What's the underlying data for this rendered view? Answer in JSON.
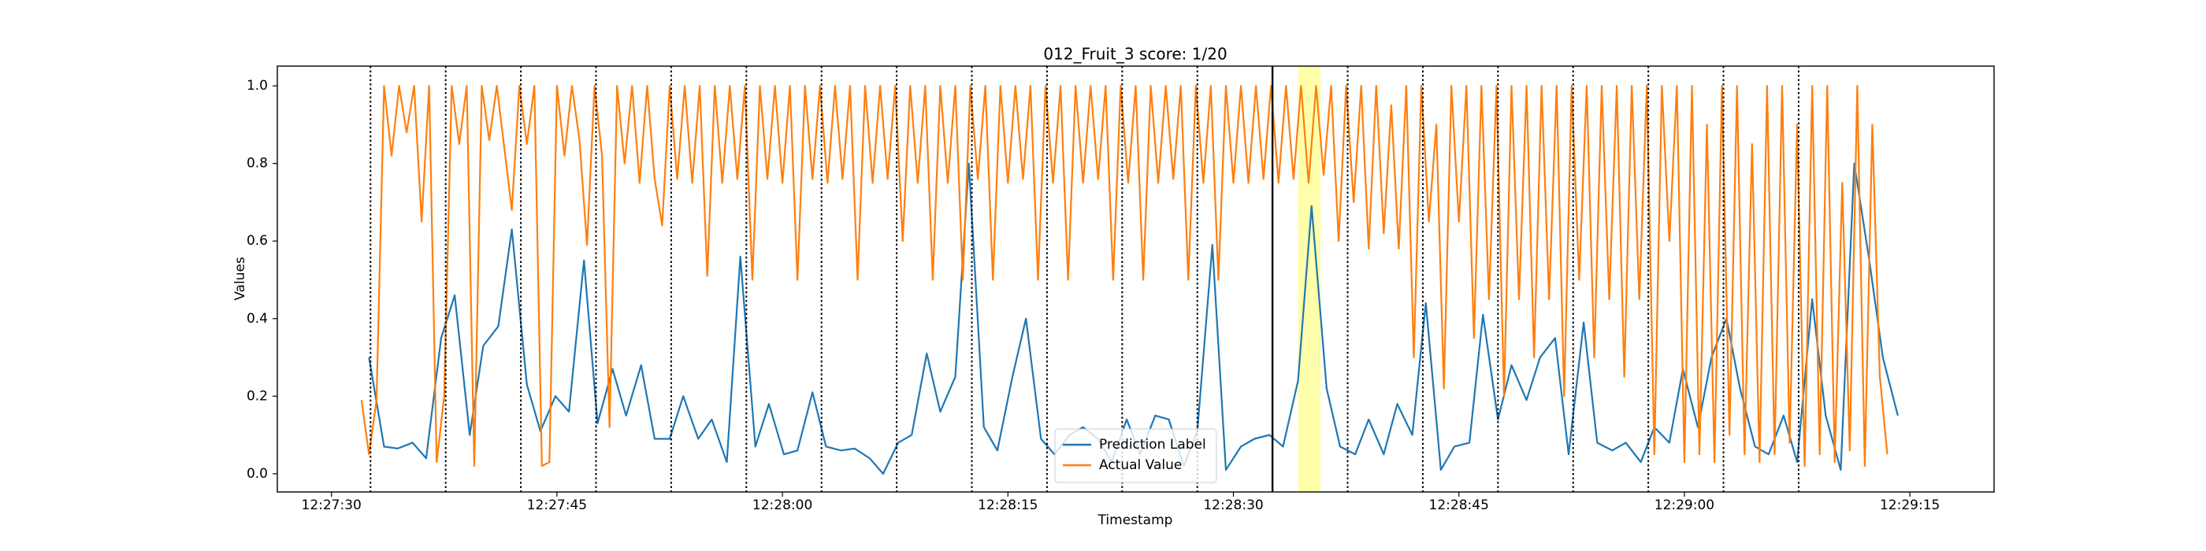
{
  "chart_data": {
    "type": "line",
    "title": "012_Fruit_3 score: 1/20",
    "x_label": "Timestamp",
    "y_label": "Values",
    "xlim": [
      "12:27:26.4",
      "12:29:20.6"
    ],
    "xticks": [
      "12:27:30",
      "12:27:45",
      "12:28:00",
      "12:28:15",
      "12:28:30",
      "12:28:45",
      "12:29:00",
      "12:29:15"
    ],
    "ylim": [
      -0.047,
      1.051
    ],
    "yticks": [
      {
        "value": 0,
        "label": "0.0"
      },
      {
        "value": 0.2,
        "label": "0.2"
      },
      {
        "value": 0.4,
        "label": "0.4"
      },
      {
        "value": 0.6,
        "label": "0.6"
      },
      {
        "value": 0.8,
        "label": "0.8"
      },
      {
        "value": 1.0,
        "label": "1.0"
      }
    ],
    "legend": "lower center",
    "markers": [
      "12:27:32.6",
      "12:27:37.6",
      "12:27:42.6",
      "12:27:47.6",
      "12:27:52.6",
      "12:27:57.6",
      "12:28:02.6",
      "12:28:07.6",
      "12:28:12.6",
      "12:28:17.6",
      "12:28:22.6",
      "12:28:27.6",
      "12:28:37.6",
      "12:28:42.6",
      "12:28:47.6",
      "12:28:52.6",
      "12:28:57.6",
      "12:29:02.6",
      "12:29:07.6"
    ],
    "current": "12:28:32.6",
    "highlight": [
      "12:28:34.3",
      "12:28:35.8"
    ],
    "series": [
      {
        "name": "Prediction Label",
        "color": "#1f77b4",
        "x": [
          "12:27:32.5",
          "12:27:33.5",
          "12:27:34.4",
          "12:27:35.4",
          "12:27:36.3",
          "12:27:37.3",
          "12:27:38.2",
          "12:27:39.2",
          "12:27:40.1",
          "12:27:41.1",
          "12:27:42.0",
          "12:27:43.0",
          "12:27:43.9",
          "12:27:44.9",
          "12:27:45.8",
          "12:27:46.8",
          "12:27:47.7",
          "12:27:48.7",
          "12:27:49.6",
          "12:27:50.6",
          "12:27:51.5",
          "12:27:52.5",
          "12:27:53.4",
          "12:27:54.4",
          "12:27:55.3",
          "12:27:56.3",
          "12:27:57.2",
          "12:27:58.2",
          "12:27:59.1",
          "12:28:00.1",
          "12:28:01.0",
          "12:28:02.0",
          "12:28:02.9",
          "12:28:03.9",
          "12:28:04.8",
          "12:28:05.8",
          "12:28:06.7",
          "12:28:07.7",
          "12:28:08.6",
          "12:28:09.6",
          "12:28:10.5",
          "12:28:11.5",
          "12:28:12.4",
          "12:28:13.4",
          "12:28:14.3",
          "12:28:15.3",
          "12:28:16.2",
          "12:28:17.2",
          "12:28:18.1",
          "12:28:19.1",
          "12:28:20.0",
          "12:28:21.0",
          "12:28:21.9",
          "12:28:22.9",
          "12:28:23.8",
          "12:28:24.8",
          "12:28:25.7",
          "12:28:26.7",
          "12:28:27.6",
          "12:28:28.6",
          "12:28:29.5",
          "12:28:30.5",
          "12:28:31.4",
          "12:28:32.4",
          "12:28:33.3",
          "12:28:34.3",
          "12:28:35.2",
          "12:28:36.2",
          "12:28:37.1",
          "12:28:38.1",
          "12:28:39.0",
          "12:28:40.0",
          "12:28:40.9",
          "12:28:41.9",
          "12:28:42.8",
          "12:28:43.8",
          "12:28:44.7",
          "12:28:45.7",
          "12:28:46.6",
          "12:28:47.6",
          "12:28:48.5",
          "12:28:49.5",
          "12:28:50.4",
          "12:28:51.4",
          "12:28:52.3",
          "12:28:53.3",
          "12:28:54.2",
          "12:28:55.2",
          "12:28:56.1",
          "12:28:57.1",
          "12:28:58.0",
          "12:28:59.0",
          "12:28:59.9",
          "12:29:00.9",
          "12:29:01.8",
          "12:29:02.8",
          "12:29:03.7",
          "12:29:04.7",
          "12:29:05.6",
          "12:29:06.6",
          "12:29:07.5",
          "12:29:08.5",
          "12:29:09.4",
          "12:29:10.4",
          "12:29:11.3",
          "12:29:12.3",
          "12:29:13.2",
          "12:29:14.2"
        ],
        "values": [
          0.3,
          0.07,
          0.065,
          0.08,
          0.04,
          0.35,
          0.46,
          0.1,
          0.33,
          0.38,
          0.63,
          0.23,
          0.11,
          0.2,
          0.16,
          0.55,
          0.13,
          0.27,
          0.15,
          0.28,
          0.09,
          0.09,
          0.2,
          0.09,
          0.14,
          0.03,
          0.56,
          0.07,
          0.18,
          0.05,
          0.06,
          0.21,
          0.07,
          0.06,
          0.065,
          0.04,
          0.0,
          0.08,
          0.1,
          0.31,
          0.16,
          0.25,
          0.8,
          0.12,
          0.06,
          0.25,
          0.4,
          0.09,
          0.05,
          0.1,
          0.12,
          0.09,
          0.03,
          0.14,
          0.05,
          0.15,
          0.14,
          0.02,
          0.11,
          0.59,
          0.01,
          0.07,
          0.09,
          0.1,
          0.07,
          0.24,
          0.69,
          0.22,
          0.07,
          0.05,
          0.14,
          0.05,
          0.18,
          0.1,
          0.44,
          0.01,
          0.07,
          0.08,
          0.41,
          0.14,
          0.28,
          0.19,
          0.3,
          0.35,
          0.05,
          0.39,
          0.08,
          0.06,
          0.08,
          0.03,
          0.12,
          0.08,
          0.27,
          0.12,
          0.3,
          0.4,
          0.22,
          0.07,
          0.05,
          0.15,
          0.03,
          0.45,
          0.15,
          0.01,
          0.8,
          0.55,
          0.3,
          0.15
        ]
      },
      {
        "name": "Actual Value",
        "color": "#ff7f0e",
        "x": [
          "12:27:32.0",
          "12:27:32.5",
          "12:27:33.0",
          "12:27:33.5",
          "12:27:34.0",
          "12:27:34.5",
          "12:27:35.0",
          "12:27:35.5",
          "12:27:36.0",
          "12:27:36.5",
          "12:27:37.0",
          "12:27:37.5",
          "12:27:38.0",
          "12:27:38.5",
          "12:27:39.0",
          "12:27:39.5",
          "12:27:40.0",
          "12:27:40.5",
          "12:27:41.0",
          "12:27:41.5",
          "12:27:42.0",
          "12:27:42.5",
          "12:27:43.0",
          "12:27:43.5",
          "12:27:44.0",
          "12:27:44.5",
          "12:27:45.0",
          "12:27:45.5",
          "12:27:46.0",
          "12:27:46.5",
          "12:27:47.0",
          "12:27:47.5",
          "12:27:48.0",
          "12:27:48.5",
          "12:27:49.0",
          "12:27:49.5",
          "12:27:50.0",
          "12:27:50.5",
          "12:27:51.0",
          "12:27:51.5",
          "12:27:52.0",
          "12:27:52.5",
          "12:27:53.0",
          "12:27:53.5",
          "12:27:54.0",
          "12:27:54.5",
          "12:27:55.0",
          "12:27:55.5",
          "12:27:56.0",
          "12:27:56.5",
          "12:27:57.0",
          "12:27:57.5",
          "12:27:58.0",
          "12:27:58.5",
          "12:27:59.0",
          "12:27:59.5",
          "12:28:00.0",
          "12:28:00.5",
          "12:28:01.0",
          "12:28:01.5",
          "12:28:02.0",
          "12:28:02.5",
          "12:28:03.0",
          "12:28:03.5",
          "12:28:04.0",
          "12:28:04.5",
          "12:28:05.0",
          "12:28:05.5",
          "12:28:06.0",
          "12:28:06.5",
          "12:28:07.0",
          "12:28:07.5",
          "12:28:08.0",
          "12:28:08.5",
          "12:28:09.0",
          "12:28:09.5",
          "12:28:10.0",
          "12:28:10.5",
          "12:28:11.0",
          "12:28:11.5",
          "12:28:12.0",
          "12:28:12.5",
          "12:28:13.0",
          "12:28:13.5",
          "12:28:14.0",
          "12:28:14.5",
          "12:28:15.0",
          "12:28:15.5",
          "12:28:16.0",
          "12:28:16.5",
          "12:28:17.0",
          "12:28:17.5",
          "12:28:18.0",
          "12:28:18.5",
          "12:28:19.0",
          "12:28:19.5",
          "12:28:20.0",
          "12:28:20.5",
          "12:28:21.0",
          "12:28:21.5",
          "12:28:22.0",
          "12:28:22.5",
          "12:28:23.0",
          "12:28:23.5",
          "12:28:24.0",
          "12:28:24.5",
          "12:28:25.0",
          "12:28:25.5",
          "12:28:26.0",
          "12:28:26.5",
          "12:28:27.0",
          "12:28:27.5",
          "12:28:28.0",
          "12:28:28.5",
          "12:28:29.0",
          "12:28:29.5",
          "12:28:30.0",
          "12:28:30.5",
          "12:28:31.0",
          "12:28:31.5",
          "12:28:32.0",
          "12:28:32.5",
          "12:28:33.0",
          "12:28:33.5",
          "12:28:34.0",
          "12:28:34.5",
          "12:28:35.0",
          "12:28:35.5",
          "12:28:36.0",
          "12:28:36.5",
          "12:28:37.0",
          "12:28:37.5",
          "12:28:38.0",
          "12:28:38.5",
          "12:28:39.0",
          "12:28:39.5",
          "12:28:40.0",
          "12:28:40.5",
          "12:28:41.0",
          "12:28:41.5",
          "12:28:42.0",
          "12:28:42.5",
          "12:28:43.0",
          "12:28:43.5",
          "12:28:44.0",
          "12:28:44.5",
          "12:28:45.0",
          "12:28:45.5",
          "12:28:46.0",
          "12:28:46.5",
          "12:28:47.0",
          "12:28:47.5",
          "12:28:48.0",
          "12:28:48.5",
          "12:28:49.0",
          "12:28:49.5",
          "12:28:50.0",
          "12:28:50.5",
          "12:28:51.0",
          "12:28:51.5",
          "12:28:52.0",
          "12:28:52.5",
          "12:28:53.0",
          "12:28:53.5",
          "12:28:54.0",
          "12:28:54.5",
          "12:28:55.0",
          "12:28:55.5",
          "12:28:56.0",
          "12:28:56.5",
          "12:28:57.0",
          "12:28:57.5",
          "12:28:58.0",
          "12:28:58.5",
          "12:28:59.0",
          "12:28:59.5",
          "12:29:00.0",
          "12:29:00.5",
          "12:29:01.0",
          "12:29:01.5",
          "12:29:02.0",
          "12:29:02.5",
          "12:29:03.0",
          "12:29:03.5",
          "12:29:04.0",
          "12:29:04.5",
          "12:29:05.0",
          "12:29:05.5",
          "12:29:06.0",
          "12:29:06.5",
          "12:29:07.0",
          "12:29:07.5",
          "12:29:08.0",
          "12:29:08.5",
          "12:29:09.0",
          "12:29:09.5",
          "12:29:10.0",
          "12:29:10.5",
          "12:29:11.0",
          "12:29:11.5",
          "12:29:12.0",
          "12:29:12.5",
          "12:29:13.0",
          "12:29:13.5"
        ],
        "values": [
          0.19,
          0.05,
          0.19,
          1.0,
          0.82,
          1.0,
          0.88,
          1.0,
          0.65,
          1.0,
          0.03,
          0.2,
          1.0,
          0.85,
          1.0,
          0.02,
          1.0,
          0.86,
          1.0,
          0.84,
          0.68,
          1.0,
          0.85,
          1.0,
          0.02,
          0.03,
          1.0,
          0.82,
          1.0,
          0.86,
          0.59,
          1.0,
          0.82,
          0.12,
          1.0,
          0.8,
          1.0,
          0.75,
          1.0,
          0.76,
          0.64,
          1.0,
          0.76,
          1.0,
          0.75,
          1.0,
          0.51,
          1.0,
          0.75,
          1.0,
          0.76,
          1.0,
          0.5,
          1.0,
          0.76,
          1.0,
          0.75,
          1.0,
          0.5,
          1.0,
          0.76,
          1.0,
          0.75,
          1.0,
          0.76,
          1.0,
          0.5,
          1.0,
          0.75,
          1.0,
          0.76,
          1.0,
          0.6,
          1.0,
          0.75,
          1.0,
          0.5,
          1.0,
          0.75,
          1.0,
          0.5,
          1.0,
          0.76,
          1.0,
          0.5,
          1.0,
          0.75,
          1.0,
          0.76,
          1.0,
          0.5,
          1.0,
          0.75,
          1.0,
          0.5,
          1.0,
          0.75,
          1.0,
          0.76,
          1.0,
          0.5,
          1.0,
          0.75,
          1.0,
          0.5,
          1.0,
          0.75,
          1.0,
          0.76,
          1.0,
          0.5,
          1.0,
          0.75,
          1.0,
          0.5,
          1.0,
          0.75,
          1.0,
          0.75,
          1.0,
          0.76,
          1.0,
          0.75,
          1.0,
          0.76,
          1.0,
          0.75,
          1.0,
          0.77,
          1.0,
          0.6,
          1.0,
          0.7,
          1.0,
          0.58,
          1.0,
          0.62,
          0.95,
          0.58,
          1.0,
          0.3,
          1.0,
          0.65,
          0.9,
          0.22,
          1.0,
          0.65,
          1.0,
          0.35,
          1.0,
          0.45,
          1.0,
          0.2,
          1.0,
          0.45,
          1.0,
          0.3,
          1.0,
          0.45,
          1.0,
          0.2,
          1.0,
          0.5,
          1.0,
          0.3,
          1.0,
          0.45,
          1.0,
          0.25,
          1.0,
          0.45,
          1.0,
          0.05,
          1.0,
          0.6,
          1.0,
          0.03,
          1.0,
          0.05,
          0.9,
          0.03,
          1.0,
          0.1,
          1.0,
          0.05,
          0.85,
          0.03,
          1.0,
          0.05,
          1.0,
          0.08,
          0.9,
          0.02,
          1.0,
          0.05,
          1.0,
          0.03,
          0.75,
          0.06,
          1.0,
          0.02,
          0.9,
          0.25,
          0.05
        ]
      }
    ]
  }
}
